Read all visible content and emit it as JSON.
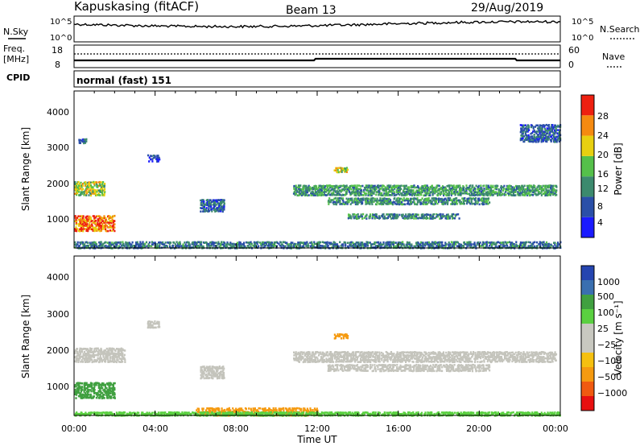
{
  "header": {
    "station": "Kapuskasing (fitACF)",
    "beam": "Beam 13",
    "date": "29/Aug/2019"
  },
  "top_panels": {
    "nsky_label": "N.Sky",
    "nsky_ticks": [
      "10^5",
      "10^0"
    ],
    "nsearch_label": "N.Search",
    "nsearch_ticks": [
      "10^5",
      "10^0"
    ],
    "freq_label": "Freq.",
    "freq_unit": "[MHz]",
    "freq_ticks": [
      "18",
      "8"
    ],
    "nave_label": "Nave",
    "nave_ticks": [
      "60",
      "0"
    ],
    "cpid_label": "CPID",
    "cpid_value": "normal (fast) 151"
  },
  "colors": {
    "power_scale": [
      "#1a1aff",
      "#2a4fa8",
      "#3c8a6e",
      "#55c04a",
      "#e8d010",
      "#f58a10",
      "#ee2010"
    ],
    "velocity_scale": [
      "#e81010",
      "#f05a10",
      "#f59a10",
      "#f5c010",
      "#c8c8c0",
      "#c8c8c0",
      "#5ad040",
      "#40a040",
      "#3a6fb0",
      "#2545b0"
    ],
    "ground_scatter": "#c4c4bc",
    "line": "#000000"
  },
  "chart_data": [
    {
      "type": "heatmap",
      "name": "power",
      "ylabel": "Slant Range [km]",
      "yticks": [
        "1000",
        "2000",
        "3000",
        "4000"
      ],
      "ylim": [
        200,
        4600
      ],
      "xlim": [
        "00:00",
        "24:00"
      ],
      "colorbar_label": "Power [dB]",
      "colorbar_ticks": [
        "4",
        "8",
        "12",
        "16",
        "20",
        "24",
        "28"
      ],
      "regions": [
        {
          "t0": 0.0,
          "t1": 2.0,
          "r0": 700,
          "r1": 1150,
          "value": 27
        },
        {
          "t0": 0.0,
          "t1": 1.5,
          "r0": 1700,
          "r1": 2100,
          "value": 19
        },
        {
          "t0": 0.2,
          "t1": 0.6,
          "r0": 3150,
          "r1": 3300,
          "value": 10
        },
        {
          "t0": 3.6,
          "t1": 4.2,
          "r0": 2650,
          "r1": 2850,
          "value": 7
        },
        {
          "t0": 6.2,
          "t1": 7.4,
          "r0": 1250,
          "r1": 1600,
          "value": 9
        },
        {
          "t0": 10.8,
          "t1": 23.8,
          "r0": 1700,
          "r1": 2000,
          "value": 14
        },
        {
          "t0": 12.5,
          "t1": 20.5,
          "r0": 1450,
          "r1": 1650,
          "value": 13
        },
        {
          "t0": 13.5,
          "t1": 19.0,
          "r0": 1050,
          "r1": 1200,
          "value": 12
        },
        {
          "t0": 12.8,
          "t1": 13.5,
          "r0": 2350,
          "r1": 2500,
          "value": 20
        },
        {
          "t0": 22.0,
          "t1": 24.0,
          "r0": 3200,
          "r1": 3700,
          "value": 9
        },
        {
          "t0": 0.0,
          "t1": 24.0,
          "r0": 220,
          "r1": 420,
          "value": 11
        }
      ]
    },
    {
      "type": "heatmap",
      "name": "velocity",
      "ylabel": "Slant Range [km]",
      "yticks": [
        "1000",
        "2000",
        "3000",
        "4000"
      ],
      "ylim": [
        200,
        4600
      ],
      "xlim": [
        "00:00",
        "24:00"
      ],
      "xticks": [
        "00:00",
        "04:00",
        "08:00",
        "12:00",
        "16:00",
        "20:00",
        "00:00"
      ],
      "xlabel": "Time UT",
      "colorbar_label": "Velocity [m s⁻¹]",
      "colorbar_ticks": [
        "1000",
        "500",
        "100",
        "25",
        "−25",
        "−100",
        "−500",
        "−1000"
      ],
      "regions": [
        {
          "t0": 0.0,
          "t1": 2.0,
          "r0": 700,
          "r1": 1150,
          "value": 150
        },
        {
          "t0": 0.0,
          "t1": 2.5,
          "r0": 1700,
          "r1": 2100,
          "value": 0
        },
        {
          "t0": 3.6,
          "t1": 4.2,
          "r0": 2650,
          "r1": 2850,
          "value": 0
        },
        {
          "t0": 6.2,
          "t1": 7.4,
          "r0": 1250,
          "r1": 1600,
          "value": 0
        },
        {
          "t0": 10.8,
          "t1": 23.8,
          "r0": 1700,
          "r1": 2000,
          "value": 0
        },
        {
          "t0": 12.5,
          "t1": 20.5,
          "r0": 1450,
          "r1": 1650,
          "value": 0
        },
        {
          "t0": 12.8,
          "t1": 13.5,
          "r0": 2350,
          "r1": 2500,
          "value": -300
        },
        {
          "t0": 6.0,
          "t1": 12.0,
          "r0": 220,
          "r1": 450,
          "value": -150
        },
        {
          "t0": 0.0,
          "t1": 24.0,
          "r0": 220,
          "r1": 330,
          "value": 60
        }
      ]
    }
  ]
}
